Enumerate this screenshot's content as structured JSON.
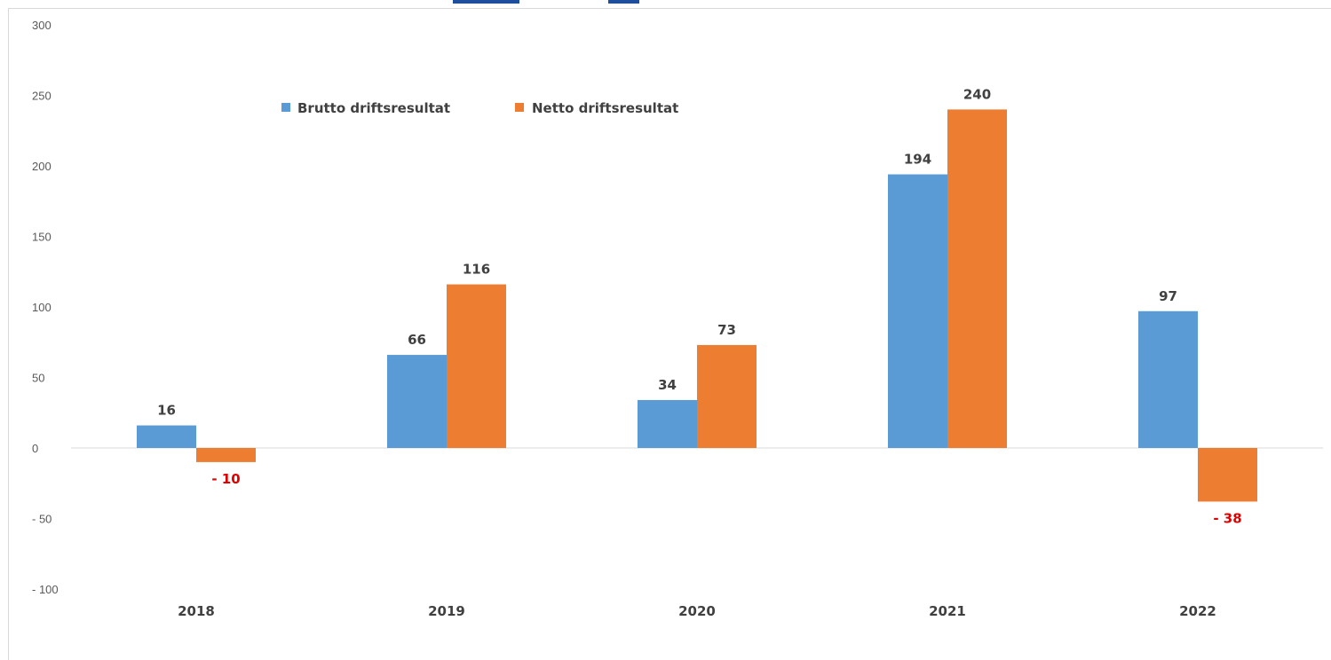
{
  "chart_data": {
    "type": "bar",
    "categories": [
      "2018",
      "2019",
      "2020",
      "2021",
      "2022"
    ],
    "series": [
      {
        "name": "Brutto driftsresultat",
        "values": [
          16,
          66,
          34,
          194,
          97
        ],
        "color": "#5b9bd5"
      },
      {
        "name": "Netto driftsresultat",
        "values": [
          -10,
          116,
          73,
          240,
          -38
        ],
        "color": "#ed7d31"
      }
    ],
    "data_labels": [
      [
        "16",
        "66",
        "34",
        "194",
        "97"
      ],
      [
        "- 10",
        "116",
        "73",
        "240",
        "- 38"
      ]
    ],
    "ylim": [
      -100,
      300
    ],
    "yticks": [
      300,
      250,
      200,
      150,
      100,
      50,
      0,
      -50,
      -100
    ],
    "ytick_labels": [
      "300",
      "250",
      "200",
      "150",
      "100",
      "50",
      "0",
      "- 50",
      "- 100"
    ],
    "negative_label_color": "#e00000",
    "positive_label_color": "#404040",
    "legend_position": "top-left",
    "grid": false
  }
}
